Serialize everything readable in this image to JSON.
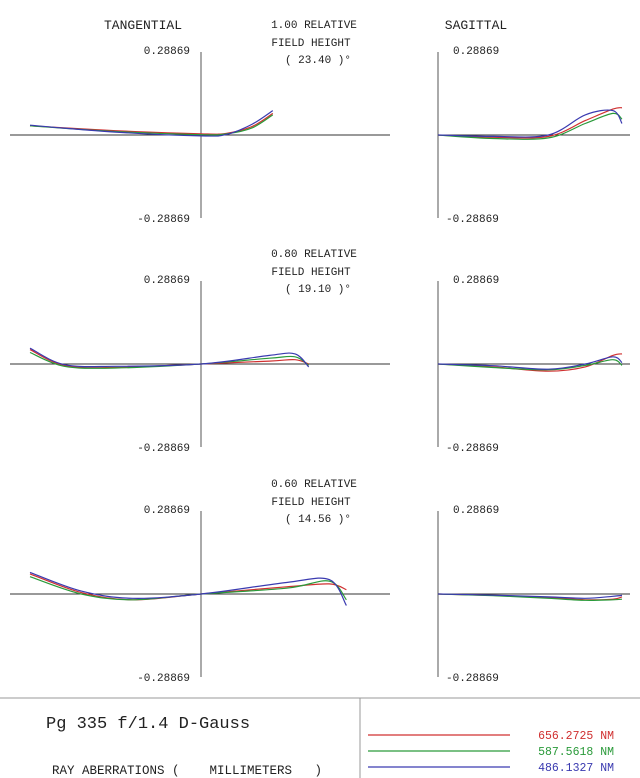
{
  "header": {
    "tangential_label": "TANGENTIAL",
    "sagittal_label": "SAGITTAL"
  },
  "footer": {
    "title": "Pg 335 f/1.4 D-Gauss",
    "subtitle": "RAY ABERRATIONS (    MILLIMETERS   )"
  },
  "legend": [
    {
      "label": "656.2725 NM",
      "color": "#d03030"
    },
    {
      "label": "587.5618 NM",
      "color": "#2a9a3a"
    },
    {
      "label": "486.1327 NM",
      "color": "#3a3ab0"
    }
  ],
  "chart_data": [
    {
      "type": "line",
      "field_line1": "1.00  RELATIVE",
      "field_line2": "FIELD HEIGHT",
      "field_angle": "( 23.40 )°",
      "ylim": [
        -0.28869,
        0.28869
      ],
      "tick_top": "0.28869",
      "tick_bottom": "-0.28869",
      "tangential": {
        "x": [
          -1.0,
          -0.5,
          0.0,
          0.15,
          0.3,
          0.42
        ],
        "series": [
          {
            "color": "#d03030",
            "values": [
              0.032,
              0.015,
              0.004,
              0.006,
              0.03,
              0.075
            ]
          },
          {
            "color": "#2a9a3a",
            "values": [
              0.032,
              0.012,
              0.001,
              0.004,
              0.025,
              0.07
            ]
          },
          {
            "color": "#3a3ab0",
            "values": [
              0.034,
              0.01,
              -0.003,
              0.002,
              0.038,
              0.085
            ]
          }
        ]
      },
      "sagittal": {
        "x": [
          0.0,
          0.3,
          0.6,
          0.8,
          0.95,
          1.0
        ],
        "series": [
          {
            "color": "#d03030",
            "values": [
              0.0,
              -0.008,
              -0.005,
              0.05,
              0.09,
              0.095
            ]
          },
          {
            "color": "#2a9a3a",
            "values": [
              0.0,
              -0.012,
              -0.01,
              0.04,
              0.075,
              0.055
            ]
          },
          {
            "color": "#3a3ab0",
            "values": [
              0.0,
              -0.005,
              0.0,
              0.07,
              0.085,
              0.04
            ]
          }
        ]
      }
    },
    {
      "type": "line",
      "field_line1": "0.80  RELATIVE",
      "field_line2": "FIELD HEIGHT",
      "field_angle": "( 19.10 )°",
      "ylim": [
        -0.28869,
        0.28869
      ],
      "tick_top": "0.28869",
      "tick_bottom": "-0.28869",
      "tangential": {
        "x": [
          -1.0,
          -0.8,
          -0.5,
          0.0,
          0.4,
          0.55,
          0.63
        ],
        "series": [
          {
            "color": "#d03030",
            "values": [
              0.05,
              -0.005,
              -0.012,
              0.0,
              0.01,
              0.015,
              0.0
            ]
          },
          {
            "color": "#2a9a3a",
            "values": [
              0.04,
              -0.008,
              -0.014,
              0.0,
              0.02,
              0.025,
              -0.005
            ]
          },
          {
            "color": "#3a3ab0",
            "values": [
              0.055,
              -0.002,
              -0.008,
              0.0,
              0.03,
              0.035,
              -0.01
            ]
          }
        ]
      },
      "sagittal": {
        "x": [
          0.0,
          0.3,
          0.6,
          0.8,
          0.95,
          1.0
        ],
        "series": [
          {
            "color": "#d03030",
            "values": [
              0.0,
              -0.01,
              -0.025,
              -0.01,
              0.03,
              0.035
            ]
          },
          {
            "color": "#2a9a3a",
            "values": [
              0.0,
              -0.012,
              -0.02,
              -0.005,
              0.015,
              -0.005
            ]
          },
          {
            "color": "#3a3ab0",
            "values": [
              0.0,
              -0.006,
              -0.018,
              0.0,
              0.025,
              0.005
            ]
          }
        ]
      }
    },
    {
      "type": "line",
      "field_line1": "0.60  RELATIVE",
      "field_line2": "FIELD HEIGHT",
      "field_angle": "( 14.56 )°",
      "ylim": [
        -0.28869,
        0.28869
      ],
      "tick_top": "0.28869",
      "tick_bottom": "-0.28869",
      "tangential": {
        "x": [
          -1.0,
          -0.7,
          -0.4,
          0.0,
          0.5,
          0.75,
          0.85
        ],
        "series": [
          {
            "color": "#d03030",
            "values": [
              0.07,
              0.005,
              -0.02,
              0.0,
              0.025,
              0.035,
              0.015
            ]
          },
          {
            "color": "#2a9a3a",
            "values": [
              0.06,
              0.0,
              -0.02,
              0.0,
              0.02,
              0.045,
              -0.02
            ]
          },
          {
            "color": "#3a3ab0",
            "values": [
              0.075,
              0.01,
              -0.015,
              0.0,
              0.04,
              0.05,
              -0.04
            ]
          }
        ]
      },
      "sagittal": {
        "x": [
          0.0,
          0.3,
          0.6,
          0.8,
          0.95,
          1.0
        ],
        "series": [
          {
            "color": "#d03030",
            "values": [
              0.0,
              -0.005,
              -0.012,
              -0.02,
              -0.018,
              -0.01
            ]
          },
          {
            "color": "#2a9a3a",
            "values": [
              0.0,
              -0.006,
              -0.015,
              -0.022,
              -0.02,
              -0.018
            ]
          },
          {
            "color": "#3a3ab0",
            "values": [
              0.0,
              -0.004,
              -0.01,
              -0.015,
              -0.008,
              -0.005
            ]
          }
        ]
      }
    }
  ]
}
